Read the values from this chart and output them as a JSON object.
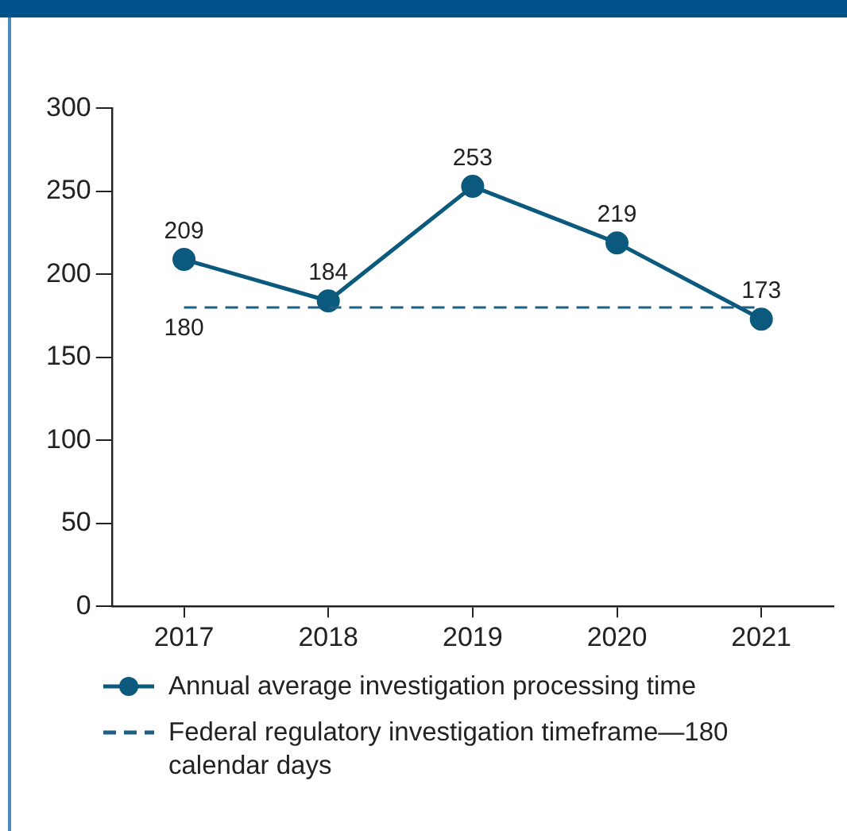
{
  "chart_data": {
    "type": "line",
    "categories": [
      "2017",
      "2018",
      "2019",
      "2020",
      "2021"
    ],
    "series": [
      {
        "name": "Annual average investigation processing time",
        "color": "#0b5a7e",
        "values": [
          209,
          184,
          253,
          219,
          173
        ]
      }
    ],
    "ylim": [
      0,
      300
    ],
    "yticks": [
      0,
      50,
      100,
      150,
      200,
      250,
      300
    ],
    "ref_lines": [
      {
        "axis": "y",
        "value": 180,
        "label": "Federal regulatory investigation timeframe—180 calendar days",
        "color": "#1f5f84",
        "line_style": "dashed"
      }
    ],
    "annotations": [
      {
        "text": "180",
        "x": "2017",
        "y": 180
      }
    ],
    "data_labels": true,
    "grid": false,
    "legend": "bottom",
    "marker": "circle",
    "line_style": "solid"
  }
}
